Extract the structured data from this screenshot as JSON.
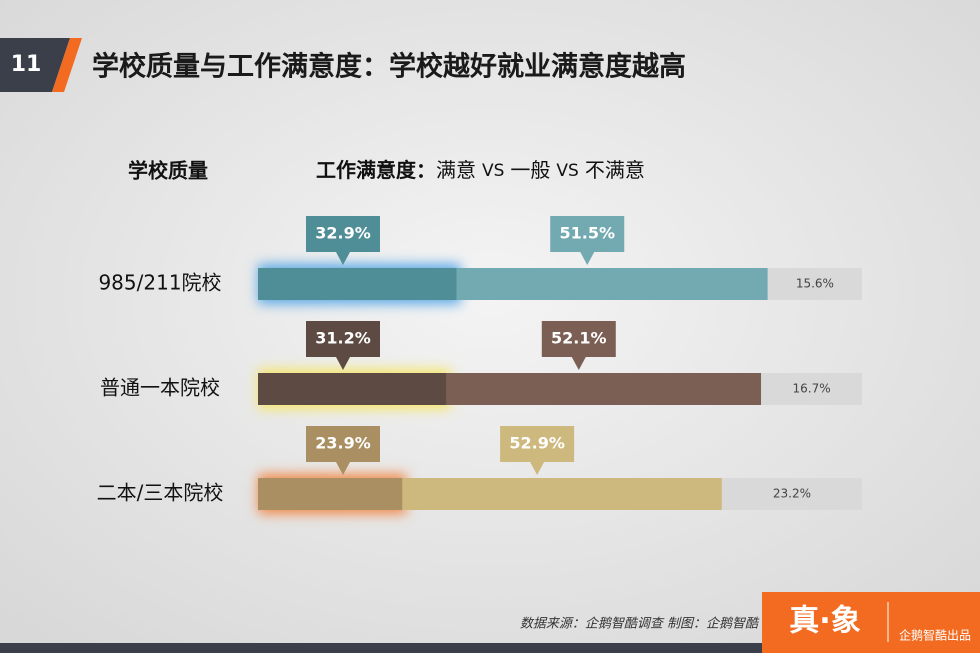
{
  "page_number": "11",
  "chart_data": {
    "type": "stacked-bar",
    "title": "学校质量与工作满意度：学校越好就业满意度越高",
    "category_header": "学校质量",
    "legend_title": "工作满意度：",
    "legend_separator": "VS",
    "categories": [
      "985/211院校",
      "普通一本院校",
      "二本/三本院校"
    ],
    "xlim": [
      0,
      100
    ],
    "glow_colors": [
      "#5aa9e6",
      "#f5e66a",
      "#f0894a"
    ],
    "series": [
      {
        "name": "满意",
        "colors": [
          "#4f8d97",
          "#5d4b43",
          "#a98f62"
        ],
        "values": [
          32.9,
          31.2,
          23.9
        ],
        "value_labels": [
          "32.9%",
          "31.2%",
          "23.9%"
        ]
      },
      {
        "name": "一般",
        "colors": [
          "#73a9b1",
          "#7b5f54",
          "#cdb87d"
        ],
        "values": [
          51.5,
          52.1,
          52.9
        ],
        "value_labels": [
          "51.5%",
          "52.1%",
          "52.9%"
        ]
      },
      {
        "name": "不满意",
        "colors": [
          "#d9d9d9",
          "#d9d9d9",
          "#d9d9d9"
        ],
        "values": [
          15.6,
          16.7,
          23.2
        ],
        "value_labels": [
          "15.6%",
          "16.7%",
          "23.2%"
        ]
      }
    ],
    "source": "数据来源：企鹅智酷调查  制图：企鹅智酷"
  },
  "logo": "真·象",
  "brand": "企鹅智酷出品"
}
